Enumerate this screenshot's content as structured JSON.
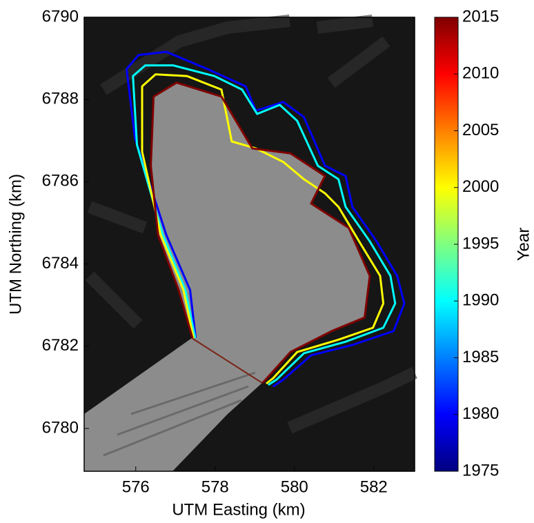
{
  "chart_data": {
    "type": "outline-map",
    "xlabel": "UTM Easting (km)",
    "ylabel": "UTM Northing (km)",
    "xlim": [
      574.7,
      583.03
    ],
    "ylim": [
      6778.96,
      6790
    ],
    "xticks": [
      576,
      578,
      580,
      582
    ],
    "yticks": [
      6780,
      6782,
      6784,
      6786,
      6788,
      6790
    ],
    "colormap": "jet",
    "clim": [
      1975,
      2015
    ],
    "cticks": [
      1975,
      1980,
      1985,
      1990,
      1995,
      2000,
      2005,
      2010,
      2015
    ],
    "clabel": "Year",
    "series": [
      {
        "year": 1980,
        "x": [
          577.51,
          577.37,
          576.77,
          575.98,
          575.77,
          576.07,
          576.77,
          577.81,
          578.77,
          579.03,
          579.72,
          580.24,
          580.77,
          581.29,
          581.46,
          582.07,
          582.59,
          582.77,
          582.5,
          581.46,
          580.42,
          579.72,
          579.46
        ],
        "y": [
          6782.2,
          6783.37,
          6784.71,
          6787.06,
          6788.74,
          6789.08,
          6789.16,
          6788.74,
          6788.32,
          6787.73,
          6787.94,
          6787.57,
          6786.39,
          6786.14,
          6785.39,
          6784.55,
          6783.71,
          6783.04,
          6782.37,
          6782.03,
          6781.78,
          6781.19,
          6781.02
        ]
      },
      {
        "year": 1990,
        "x": [
          577.5,
          577.25,
          576.68,
          576.03,
          575.93,
          576.24,
          576.94,
          577.98,
          578.68,
          579.06,
          579.63,
          580.07,
          580.59,
          581.11,
          581.29,
          581.9,
          582.42,
          582.54,
          582.24,
          581.29,
          580.24,
          579.55,
          579.34
        ],
        "y": [
          6782.2,
          6783.37,
          6784.71,
          6786.9,
          6788.57,
          6788.83,
          6788.83,
          6788.57,
          6788.24,
          6787.65,
          6787.87,
          6787.48,
          6786.39,
          6786.06,
          6785.39,
          6784.55,
          6783.71,
          6783.04,
          6782.45,
          6782.11,
          6781.83,
          6781.19,
          6781.06
        ]
      },
      {
        "year": 2000,
        "x": [
          577.46,
          577.2,
          576.63,
          576.16,
          576.16,
          576.5,
          577.29,
          578.16,
          578.42,
          579.03,
          579.72,
          580.24,
          580.77,
          581.11,
          581.63,
          582.16,
          582.24,
          581.98,
          581.11,
          580.07,
          579.46,
          579.29
        ],
        "y": [
          6782.2,
          6783.37,
          6784.71,
          6786.73,
          6788.32,
          6788.61,
          6788.57,
          6788.24,
          6786.98,
          6786.81,
          6786.48,
          6786.06,
          6785.72,
          6785.39,
          6784.55,
          6783.71,
          6783.04,
          6782.45,
          6782.16,
          6781.86,
          6781.22,
          6781.09
        ]
      },
      {
        "year": 2015,
        "x": [
          577.43,
          577.08,
          576.56,
          576.38,
          576.45,
          577.03,
          578.16,
          578.94,
          579.9,
          580.77,
          580.42,
          581.37,
          581.9,
          581.77,
          580.94,
          579.9,
          579.2
        ],
        "y": [
          6782.2,
          6783.37,
          6784.71,
          6786.39,
          6788.07,
          6788.41,
          6788.07,
          6786.81,
          6786.69,
          6786.14,
          6785.47,
          6784.88,
          6783.71,
          6782.7,
          6782.37,
          6781.86,
          6781.11
        ]
      }
    ]
  }
}
